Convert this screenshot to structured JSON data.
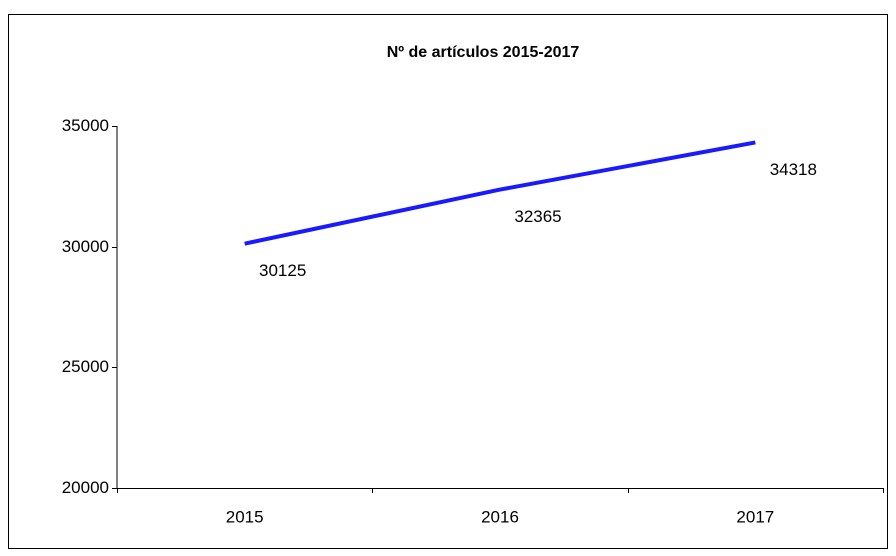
{
  "chart_data": {
    "type": "line",
    "title": "Nº de artículos  2015-2017",
    "categories": [
      "2015",
      "2016",
      "2017"
    ],
    "values": [
      30125,
      32365,
      34318
    ],
    "color": "#1a1aff",
    "ylim": [
      20000,
      35000
    ],
    "yticks": [
      20000,
      25000,
      30000,
      35000
    ],
    "grid": false
  }
}
